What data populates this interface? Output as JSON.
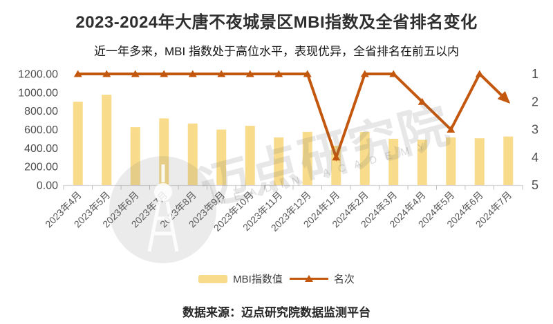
{
  "header": {
    "title": "2023-2024年大唐不夜城景区MBI指数及全省排名变化",
    "subtitle": "近一年多来，MBI 指数处于高位水平，表现优异，全省排名在前五以内"
  },
  "chart_data": {
    "type": "bar+line-combo",
    "categories": [
      "2023年4月",
      "2023年5月",
      "2023年6月",
      "2023年7月",
      "2023年8月",
      "2023年9月",
      "2023年10月",
      "2023年11月",
      "2023年12月",
      "2024年1月",
      "2024年2月",
      "2024年3月",
      "2024年4月",
      "2024年5月",
      "2024年6月",
      "2024年7月"
    ],
    "series": [
      {
        "name": "MBI指数值",
        "type": "bar",
        "yaxis": "left",
        "color": "#F8DC8B",
        "values": [
          900,
          975,
          625,
          720,
          665,
          600,
          640,
          515,
          575,
          425,
          575,
          500,
          490,
          515,
          505,
          525
        ]
      },
      {
        "name": "名次",
        "type": "line",
        "yaxis": "right",
        "color": "#C4570E",
        "marker": "triangle",
        "end_arrow": true,
        "values": [
          1,
          1,
          1,
          1,
          1,
          1,
          1,
          1,
          1,
          4,
          1,
          1,
          2,
          3,
          1,
          2
        ]
      }
    ],
    "left_axis": {
      "min": 0,
      "max": 1200,
      "tick_labels": [
        "1200.00",
        "1000.00",
        "800.00",
        "600.00",
        "400.00",
        "200.00",
        "0.00"
      ]
    },
    "right_axis": {
      "min": 1,
      "max": 5,
      "inverted": true,
      "tick_labels": [
        "1",
        "2",
        "3",
        "4",
        "5"
      ]
    },
    "grid": false,
    "legend_position": "bottom",
    "axis_label_color": "#595959",
    "axis_line_color": "#D9D9D9",
    "tick_color": "#BFBFBF"
  },
  "watermark": {
    "cn_text": "迈点研究院",
    "en_text": "MEADIN ACADEMY"
  },
  "footer": {
    "source": "数据来源：迈点研究院数据监测平台"
  }
}
